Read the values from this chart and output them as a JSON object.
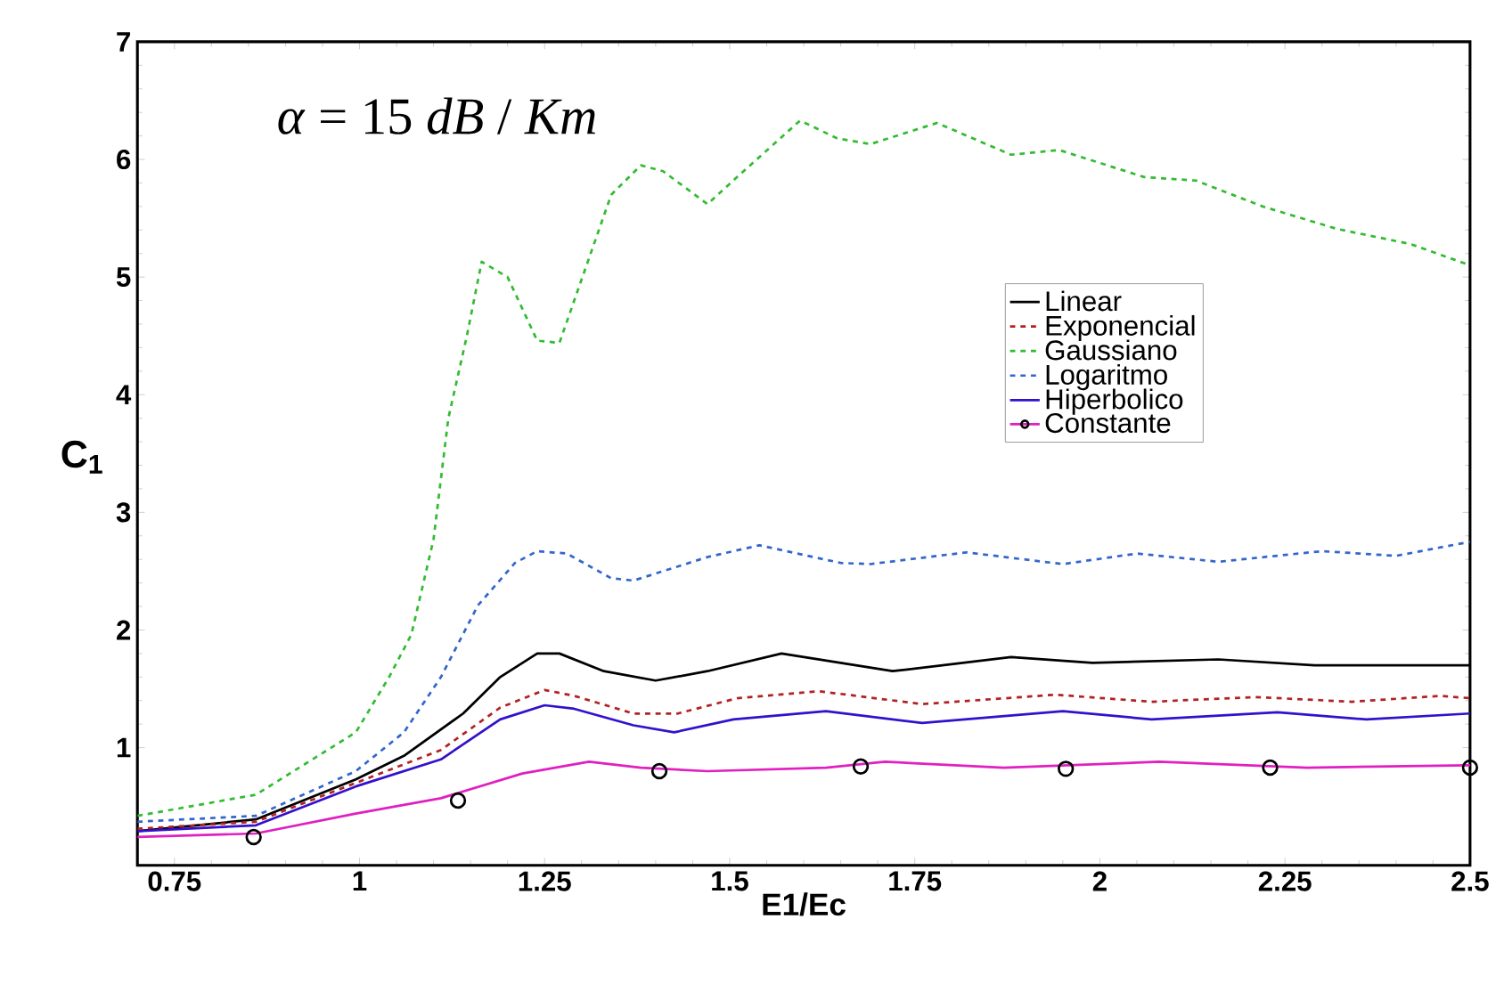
{
  "chart_data": {
    "type": "line",
    "xlabel": "E1/Ec",
    "ylabel": "C$_{1}$",
    "annotations": [
      "*α* = 15 *dB* / *Km*"
    ],
    "xlim": [
      0.7,
      2.5
    ],
    "ylim": [
      0,
      7
    ],
    "xticks": [
      0.75,
      1,
      1.25,
      1.5,
      1.75,
      2,
      2.25,
      2.5
    ],
    "yticks": [
      1,
      2,
      3,
      4,
      5,
      6,
      7
    ],
    "grid": false,
    "legend": "right",
    "series": [
      {
        "name": "Linear",
        "color": "#000000",
        "line_style": "solid",
        "x": [
          0.7,
          0.86,
          0.995,
          1.06,
          1.14,
          1.19,
          1.24,
          1.27,
          1.33,
          1.4,
          1.47,
          1.57,
          1.72,
          1.88,
          1.99,
          2.16,
          2.29,
          2.5
        ],
        "values": [
          0.29,
          0.39,
          0.73,
          0.93,
          1.29,
          1.6,
          1.8,
          1.8,
          1.65,
          1.57,
          1.65,
          1.8,
          1.65,
          1.77,
          1.72,
          1.75,
          1.7,
          1.7
        ]
      },
      {
        "name": "Exponencial",
        "color": "#b22222",
        "line_style": "dashed",
        "x": [
          0.7,
          0.86,
          0.995,
          1.11,
          1.19,
          1.25,
          1.29,
          1.37,
          1.43,
          1.51,
          1.62,
          1.76,
          1.94,
          2.07,
          2.21,
          2.34,
          2.46,
          2.5
        ],
        "values": [
          0.31,
          0.37,
          0.7,
          0.98,
          1.34,
          1.49,
          1.44,
          1.29,
          1.29,
          1.42,
          1.48,
          1.37,
          1.45,
          1.39,
          1.43,
          1.39,
          1.44,
          1.42
        ]
      },
      {
        "name": "Gaussiano",
        "color": "#33bb33",
        "line_style": "dashed",
        "x": [
          0.7,
          0.86,
          0.995,
          1.04,
          1.07,
          1.1,
          1.12,
          1.145,
          1.165,
          1.2,
          1.24,
          1.27,
          1.3,
          1.34,
          1.38,
          1.41,
          1.47,
          1.51,
          1.595,
          1.645,
          1.69,
          1.78,
          1.88,
          1.945,
          2.06,
          2.13,
          2.22,
          2.32,
          2.42,
          2.5
        ],
        "values": [
          0.42,
          0.6,
          1.13,
          1.6,
          1.96,
          2.77,
          3.8,
          4.5,
          5.13,
          5.0,
          4.46,
          4.44,
          4.98,
          5.7,
          5.95,
          5.9,
          5.62,
          5.85,
          6.33,
          6.18,
          6.13,
          6.31,
          6.04,
          6.08,
          5.85,
          5.82,
          5.6,
          5.41,
          5.28,
          5.1
        ]
      },
      {
        "name": "Logaritmo",
        "color": "#3366cc",
        "line_style": "dashed",
        "x": [
          0.7,
          0.86,
          0.995,
          1.06,
          1.11,
          1.16,
          1.21,
          1.24,
          1.28,
          1.34,
          1.37,
          1.47,
          1.54,
          1.65,
          1.69,
          1.82,
          1.95,
          2.05,
          2.16,
          2.3,
          2.4,
          2.5
        ],
        "values": [
          0.37,
          0.42,
          0.8,
          1.13,
          1.6,
          2.21,
          2.57,
          2.67,
          2.65,
          2.44,
          2.42,
          2.62,
          2.72,
          2.57,
          2.56,
          2.66,
          2.56,
          2.65,
          2.58,
          2.67,
          2.63,
          2.75
        ]
      },
      {
        "name": "Hiperbolico",
        "color": "#3311cc",
        "line_style": "solid",
        "x": [
          0.7,
          0.86,
          0.995,
          1.11,
          1.19,
          1.25,
          1.29,
          1.37,
          1.425,
          1.505,
          1.63,
          1.76,
          1.95,
          2.07,
          2.24,
          2.36,
          2.5
        ],
        "values": [
          0.29,
          0.34,
          0.67,
          0.9,
          1.24,
          1.36,
          1.33,
          1.19,
          1.13,
          1.24,
          1.31,
          1.21,
          1.31,
          1.24,
          1.3,
          1.24,
          1.29
        ]
      },
      {
        "name": "Constante",
        "color": "#e020c0",
        "line_style": "solid",
        "x": [
          0.7,
          0.86,
          0.995,
          1.11,
          1.22,
          1.31,
          1.38,
          1.47,
          1.63,
          1.71,
          1.87,
          2.08,
          2.28,
          2.5
        ],
        "values": [
          0.24,
          0.27,
          0.44,
          0.57,
          0.78,
          0.88,
          0.83,
          0.8,
          0.83,
          0.88,
          0.83,
          0.88,
          0.83,
          0.85
        ]
      },
      {
        "type": "scatter",
        "color": "#000000",
        "marker": "circle",
        "x": [
          0.857,
          1.133,
          1.405,
          1.677,
          1.954,
          2.23,
          2.5
        ],
        "values": [
          0.24,
          0.55,
          0.8,
          0.84,
          0.82,
          0.83,
          0.83
        ]
      }
    ]
  }
}
